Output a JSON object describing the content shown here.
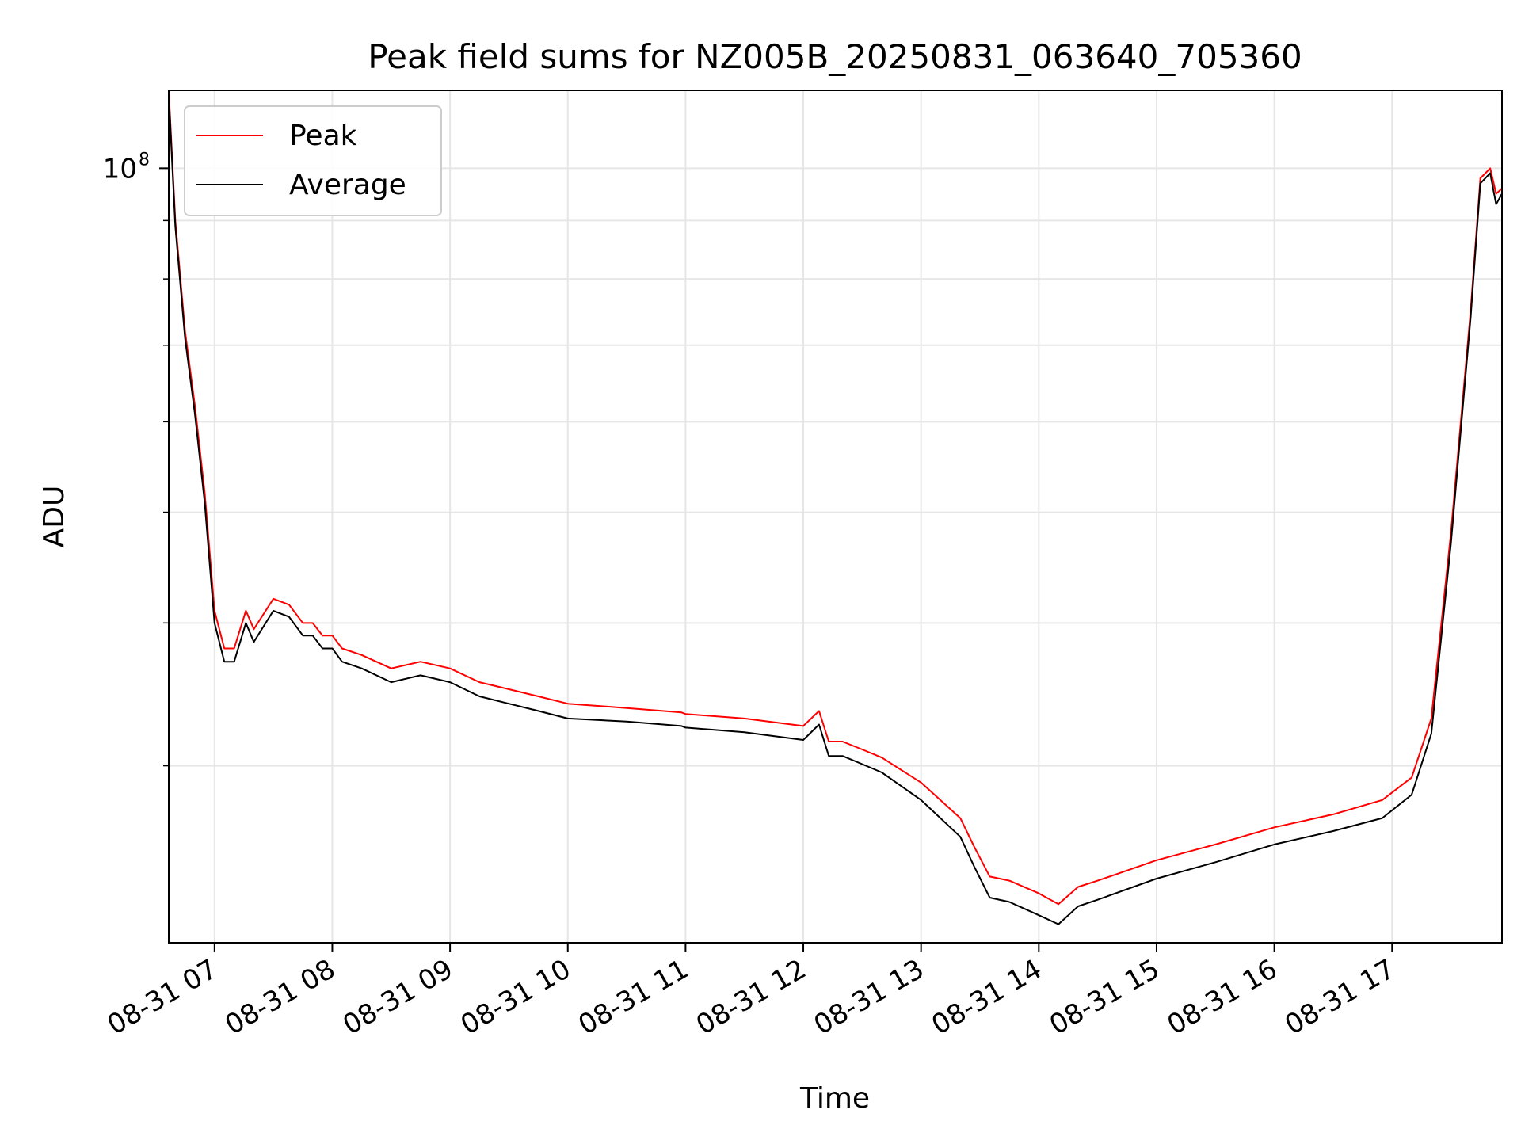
{
  "chart_data": {
    "type": "line",
    "title": "Peak field sums for NZ005B_20250831_063640_705360",
    "xlabel": "Time",
    "ylabel": "ADU",
    "yscale": "log",
    "grid": true,
    "legend_position": "upper-left",
    "xlim": [
      "2025-08-31T06:36:40",
      "2025-08-31T17:56:00"
    ],
    "ylim": [
      21000000,
      117000000
    ],
    "x_ticks": [
      "2025-08-31T07:00:00",
      "2025-08-31T08:00:00",
      "2025-08-31T09:00:00",
      "2025-08-31T10:00:00",
      "2025-08-31T11:00:00",
      "2025-08-31T12:00:00",
      "2025-08-31T13:00:00",
      "2025-08-31T14:00:00",
      "2025-08-31T15:00:00",
      "2025-08-31T16:00:00",
      "2025-08-31T17:00:00"
    ],
    "x_tick_labels": [
      "08-31 07",
      "08-31 08",
      "08-31 09",
      "08-31 10",
      "08-31 11",
      "08-31 12",
      "08-31 13",
      "08-31 14",
      "08-31 15",
      "08-31 16",
      "08-31 17"
    ],
    "y_ticks": [
      100000000
    ],
    "y_tick_labels": [
      "10"
    ],
    "y_tick_label_exponent": "8",
    "y_minor_ticks": [
      30000000,
      40000000,
      50000000,
      60000000,
      70000000,
      80000000,
      90000000
    ],
    "series": [
      {
        "name": "Peak",
        "color": "#ff0000",
        "x": [
          "2025-08-31T06:36:40",
          "2025-08-31T06:40:00",
          "2025-08-31T06:45:00",
          "2025-08-31T06:50:00",
          "2025-08-31T06:55:00",
          "2025-08-31T07:00:00",
          "2025-08-31T07:05:00",
          "2025-08-31T07:10:00",
          "2025-08-31T07:16:00",
          "2025-08-31T07:20:00",
          "2025-08-31T07:30:00",
          "2025-08-31T07:38:00",
          "2025-08-31T07:45:00",
          "2025-08-31T07:50:00",
          "2025-08-31T07:55:00",
          "2025-08-31T08:00:00",
          "2025-08-31T08:05:00",
          "2025-08-31T08:15:00",
          "2025-08-31T08:30:00",
          "2025-08-31T08:45:00",
          "2025-08-31T09:00:00",
          "2025-08-31T09:15:00",
          "2025-08-31T09:30:00",
          "2025-08-31T09:45:00",
          "2025-08-31T10:00:00",
          "2025-08-31T10:30:00",
          "2025-08-31T10:58:00",
          "2025-08-31T11:00:00",
          "2025-08-31T11:30:00",
          "2025-08-31T12:00:00",
          "2025-08-31T12:08:00",
          "2025-08-31T12:13:00",
          "2025-08-31T12:20:00",
          "2025-08-31T12:30:00",
          "2025-08-31T12:40:00",
          "2025-08-31T13:00:00",
          "2025-08-31T13:20:00",
          "2025-08-31T13:27:00",
          "2025-08-31T13:35:00",
          "2025-08-31T13:45:00",
          "2025-08-31T14:00:00",
          "2025-08-31T14:10:00",
          "2025-08-31T14:20:00",
          "2025-08-31T14:30:00",
          "2025-08-31T15:00:00",
          "2025-08-31T15:30:00",
          "2025-08-31T16:00:00",
          "2025-08-31T16:30:00",
          "2025-08-31T16:55:00",
          "2025-08-31T17:10:00",
          "2025-08-31T17:20:00",
          "2025-08-31T17:30:00",
          "2025-08-31T17:40:00",
          "2025-08-31T17:45:00",
          "2025-08-31T17:50:00",
          "2025-08-31T17:53:00",
          "2025-08-31T17:56:00"
        ],
        "y": [
          117000000,
          90000000,
          72000000,
          62000000,
          52000000,
          41000000,
          38000000,
          38000000,
          41000000,
          39500000,
          42000000,
          41500000,
          40000000,
          40000000,
          39000000,
          39000000,
          38000000,
          37500000,
          36500000,
          37000000,
          36500000,
          35500000,
          35000000,
          34500000,
          34000000,
          33700000,
          33400000,
          33300000,
          33000000,
          32500000,
          33500000,
          31500000,
          31500000,
          31000000,
          30500000,
          29000000,
          27000000,
          25500000,
          24000000,
          23800000,
          23200000,
          22700000,
          23500000,
          23800000,
          24800000,
          25600000,
          26500000,
          27200000,
          28000000,
          29300000,
          33000000,
          48000000,
          75000000,
          98000000,
          100000000,
          95000000,
          96000000
        ]
      },
      {
        "name": "Average",
        "color": "#000000",
        "x": [
          "2025-08-31T06:36:40",
          "2025-08-31T06:40:00",
          "2025-08-31T06:45:00",
          "2025-08-31T06:50:00",
          "2025-08-31T06:55:00",
          "2025-08-31T07:00:00",
          "2025-08-31T07:05:00",
          "2025-08-31T07:10:00",
          "2025-08-31T07:16:00",
          "2025-08-31T07:20:00",
          "2025-08-31T07:30:00",
          "2025-08-31T07:38:00",
          "2025-08-31T07:45:00",
          "2025-08-31T07:50:00",
          "2025-08-31T07:55:00",
          "2025-08-31T08:00:00",
          "2025-08-31T08:05:00",
          "2025-08-31T08:15:00",
          "2025-08-31T08:30:00",
          "2025-08-31T08:45:00",
          "2025-08-31T09:00:00",
          "2025-08-31T09:15:00",
          "2025-08-31T09:30:00",
          "2025-08-31T09:45:00",
          "2025-08-31T10:00:00",
          "2025-08-31T10:30:00",
          "2025-08-31T10:58:00",
          "2025-08-31T11:00:00",
          "2025-08-31T11:30:00",
          "2025-08-31T12:00:00",
          "2025-08-31T12:08:00",
          "2025-08-31T12:13:00",
          "2025-08-31T12:20:00",
          "2025-08-31T12:30:00",
          "2025-08-31T12:40:00",
          "2025-08-31T13:00:00",
          "2025-08-31T13:20:00",
          "2025-08-31T13:27:00",
          "2025-08-31T13:35:00",
          "2025-08-31T13:45:00",
          "2025-08-31T14:00:00",
          "2025-08-31T14:10:00",
          "2025-08-31T14:20:00",
          "2025-08-31T14:30:00",
          "2025-08-31T15:00:00",
          "2025-08-31T15:30:00",
          "2025-08-31T16:00:00",
          "2025-08-31T16:30:00",
          "2025-08-31T16:55:00",
          "2025-08-31T17:10:00",
          "2025-08-31T17:20:00",
          "2025-08-31T17:30:00",
          "2025-08-31T17:40:00",
          "2025-08-31T17:45:00",
          "2025-08-31T17:50:00",
          "2025-08-31T17:53:00",
          "2025-08-31T17:56:00"
        ],
        "y": [
          116000000,
          89000000,
          71000000,
          61000000,
          51000000,
          40000000,
          37000000,
          37000000,
          40000000,
          38500000,
          41000000,
          40500000,
          39000000,
          39000000,
          38000000,
          38000000,
          37000000,
          36500000,
          35500000,
          36000000,
          35500000,
          34500000,
          34000000,
          33500000,
          33000000,
          32800000,
          32500000,
          32400000,
          32100000,
          31600000,
          32600000,
          30600000,
          30600000,
          30100000,
          29600000,
          28000000,
          26000000,
          24500000,
          23000000,
          22800000,
          22200000,
          21800000,
          22600000,
          22900000,
          23900000,
          24700000,
          25600000,
          26300000,
          27000000,
          28300000,
          32000000,
          47000000,
          74000000,
          97000000,
          99000000,
          93000000,
          95000000
        ]
      }
    ]
  }
}
